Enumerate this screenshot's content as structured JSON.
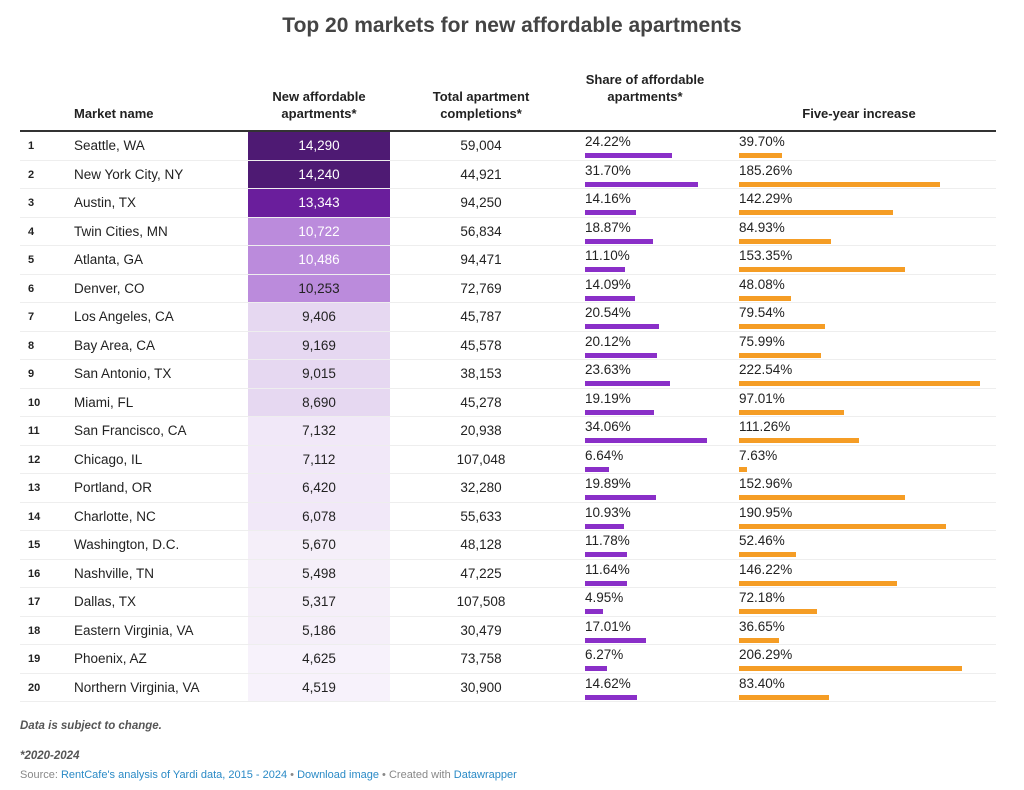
{
  "title": "Top 20 markets for new affordable apartments",
  "headers": {
    "market": "Market name",
    "new": "New affordable apartments*",
    "total": "Total apartment completions*",
    "share": "Share of affordable apartments*",
    "increase": "Five-year increase"
  },
  "colors": {
    "share_bar": "#8a2fc8",
    "increase_bar": "#f59d25"
  },
  "chart_data": {
    "type": "table",
    "title": "Top 20 markets for new affordable apartments",
    "rows": [
      {
        "rank": "1",
        "market": "Seattle, WA",
        "new": "14,290",
        "total": "59,004",
        "share": "24.22%",
        "share_v": 24.22,
        "inc": "39.70%",
        "inc_v": 39.7,
        "bg": "#4e1a73",
        "fg": "#fff"
      },
      {
        "rank": "2",
        "market": "New York City, NY",
        "new": "14,240",
        "total": "44,921",
        "share": "31.70%",
        "share_v": 31.7,
        "inc": "185.26%",
        "inc_v": 185.26,
        "bg": "#4e1a73",
        "fg": "#fff"
      },
      {
        "rank": "3",
        "market": "Austin, TX",
        "new": "13,343",
        "total": "94,250",
        "share": "14.16%",
        "share_v": 14.16,
        "inc": "142.29%",
        "inc_v": 142.29,
        "bg": "#6a1e9c",
        "fg": "#fff"
      },
      {
        "rank": "4",
        "market": "Twin Cities, MN",
        "new": "10,722",
        "total": "56,834",
        "share": "18.87%",
        "share_v": 18.87,
        "inc": "84.93%",
        "inc_v": 84.93,
        "bg": "#bb8bdc",
        "fg": "#fff"
      },
      {
        "rank": "5",
        "market": "Atlanta, GA",
        "new": "10,486",
        "total": "94,471",
        "share": "11.10%",
        "share_v": 11.1,
        "inc": "153.35%",
        "inc_v": 153.35,
        "bg": "#bb8bdc",
        "fg": "#fff"
      },
      {
        "rank": "6",
        "market": "Denver, CO",
        "new": "10,253",
        "total": "72,769",
        "share": "14.09%",
        "share_v": 14.09,
        "inc": "48.08%",
        "inc_v": 48.08,
        "bg": "#bb8bdc",
        "fg": "#222"
      },
      {
        "rank": "7",
        "market": "Los Angeles, CA",
        "new": "9,406",
        "total": "45,787",
        "share": "20.54%",
        "share_v": 20.54,
        "inc": "79.54%",
        "inc_v": 79.54,
        "bg": "#e6d8f1",
        "fg": "#222"
      },
      {
        "rank": "8",
        "market": "Bay Area, CA",
        "new": "9,169",
        "total": "45,578",
        "share": "20.12%",
        "share_v": 20.12,
        "inc": "75.99%",
        "inc_v": 75.99,
        "bg": "#e6d8f1",
        "fg": "#222"
      },
      {
        "rank": "9",
        "market": "San Antonio, TX",
        "new": "9,015",
        "total": "38,153",
        "share": "23.63%",
        "share_v": 23.63,
        "inc": "222.54%",
        "inc_v": 222.54,
        "bg": "#e6d8f1",
        "fg": "#222"
      },
      {
        "rank": "10",
        "market": "Miami, FL",
        "new": "8,690",
        "total": "45,278",
        "share": "19.19%",
        "share_v": 19.19,
        "inc": "97.01%",
        "inc_v": 97.01,
        "bg": "#e6d8f1",
        "fg": "#222"
      },
      {
        "rank": "11",
        "market": "San Francisco, CA",
        "new": "7,132",
        "total": "20,938",
        "share": "34.06%",
        "share_v": 34.06,
        "inc": "111.26%",
        "inc_v": 111.26,
        "bg": "#f1e8f8",
        "fg": "#222"
      },
      {
        "rank": "12",
        "market": "Chicago, IL",
        "new": "7,112",
        "total": "107,048",
        "share": "6.64%",
        "share_v": 6.64,
        "inc": "7.63%",
        "inc_v": 7.63,
        "bg": "#f1e8f8",
        "fg": "#222"
      },
      {
        "rank": "13",
        "market": "Portland, OR",
        "new": "6,420",
        "total": "32,280",
        "share": "19.89%",
        "share_v": 19.89,
        "inc": "152.96%",
        "inc_v": 152.96,
        "bg": "#f1e8f8",
        "fg": "#222"
      },
      {
        "rank": "14",
        "market": "Charlotte, NC",
        "new": "6,078",
        "total": "55,633",
        "share": "10.93%",
        "share_v": 10.93,
        "inc": "190.95%",
        "inc_v": 190.95,
        "bg": "#f1e8f8",
        "fg": "#222"
      },
      {
        "rank": "15",
        "market": "Washington, D.C.",
        "new": "5,670",
        "total": "48,128",
        "share": "11.78%",
        "share_v": 11.78,
        "inc": "52.46%",
        "inc_v": 52.46,
        "bg": "#f5eff9",
        "fg": "#222"
      },
      {
        "rank": "16",
        "market": "Nashville, TN",
        "new": "5,498",
        "total": "47,225",
        "share": "11.64%",
        "share_v": 11.64,
        "inc": "146.22%",
        "inc_v": 146.22,
        "bg": "#f5eff9",
        "fg": "#222"
      },
      {
        "rank": "17",
        "market": "Dallas, TX",
        "new": "5,317",
        "total": "107,508",
        "share": "4.95%",
        "share_v": 4.95,
        "inc": "72.18%",
        "inc_v": 72.18,
        "bg": "#f5eff9",
        "fg": "#222"
      },
      {
        "rank": "18",
        "market": "Eastern Virginia, VA",
        "new": "5,186",
        "total": "30,479",
        "share": "17.01%",
        "share_v": 17.01,
        "inc": "36.65%",
        "inc_v": 36.65,
        "bg": "#f5eff9",
        "fg": "#222"
      },
      {
        "rank": "19",
        "market": "Phoenix, AZ",
        "new": "4,625",
        "total": "73,758",
        "share": "6.27%",
        "share_v": 6.27,
        "inc": "206.29%",
        "inc_v": 206.29,
        "bg": "#f7f2fb",
        "fg": "#222"
      },
      {
        "rank": "20",
        "market": "Northern Virginia, VA",
        "new": "4,519",
        "total": "30,900",
        "share": "14.62%",
        "share_v": 14.62,
        "inc": "83.40%",
        "inc_v": 83.4,
        "bg": "#f7f2fb",
        "fg": "#222"
      }
    ]
  },
  "notes": {
    "disclaimer": "Data is subject to change.",
    "footnote": "*2020-2024",
    "source_prefix": "Source: ",
    "source_link": "RentCafe's analysis of Yardi data, 2015 - 2024",
    "sep1": " • ",
    "download": "Download image",
    "sep2": " • Created with ",
    "datawrapper": "Datawrapper"
  }
}
